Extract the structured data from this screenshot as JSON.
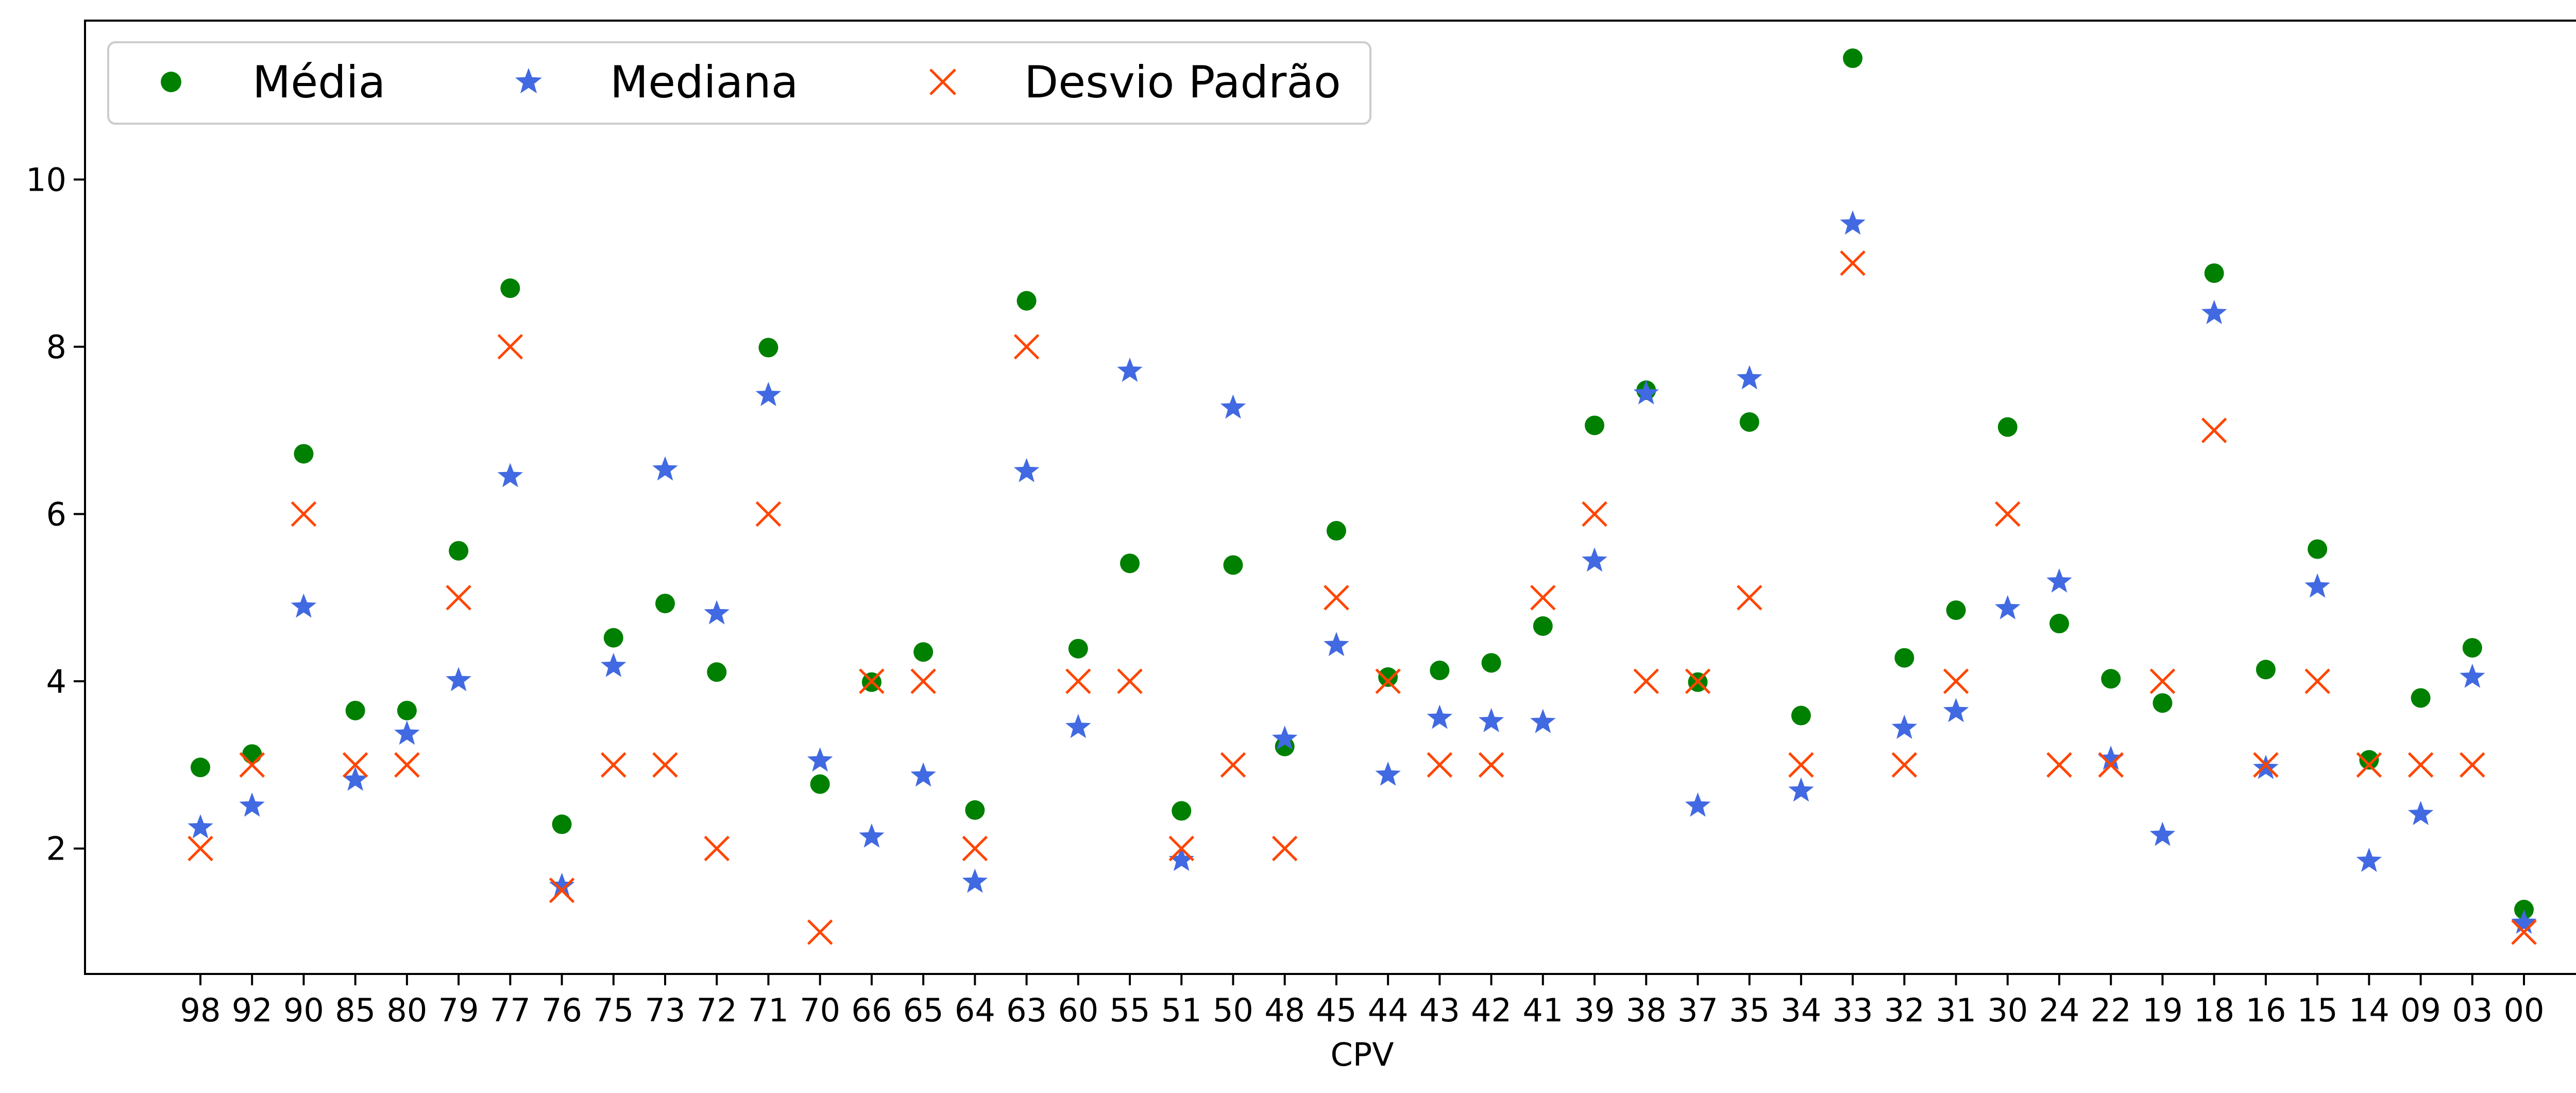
{
  "chart_data": {
    "type": "scatter",
    "title": "",
    "xlabel": "CPV",
    "ylabel": "",
    "ylim": [
      0.5,
      11.9
    ],
    "yticks": [
      2,
      4,
      6,
      8,
      10
    ],
    "grid": false,
    "legend_position": "upper-left",
    "categories": [
      "98",
      "92",
      "90",
      "85",
      "80",
      "79",
      "77",
      "76",
      "75",
      "73",
      "72",
      "71",
      "70",
      "66",
      "65",
      "64",
      "63",
      "60",
      "55",
      "51",
      "50",
      "48",
      "45",
      "44",
      "43",
      "42",
      "41",
      "39",
      "38",
      "37",
      "35",
      "34",
      "33",
      "32",
      "31",
      "30",
      "24",
      "22",
      "19",
      "18",
      "16",
      "15",
      "14",
      "09",
      "03",
      "00"
    ],
    "series": [
      {
        "name": "Média",
        "marker": "circle",
        "color": "#008000",
        "values": [
          2.97,
          3.13,
          6.72,
          3.65,
          3.65,
          5.56,
          8.7,
          2.29,
          4.52,
          4.93,
          4.11,
          7.99,
          2.77,
          3.99,
          4.35,
          2.46,
          8.55,
          4.39,
          5.41,
          2.45,
          5.39,
          3.22,
          5.8,
          4.05,
          4.13,
          4.22,
          4.66,
          7.06,
          7.48,
          3.99,
          7.1,
          3.59,
          11.45,
          4.28,
          4.85,
          7.04,
          4.69,
          4.03,
          3.74,
          8.88,
          4.14,
          5.58,
          3.06,
          3.8,
          4.4,
          1.27
        ]
      },
      {
        "name": "Mediana",
        "marker": "star",
        "color": "#4169e1",
        "values": [
          2.25,
          2.51,
          4.89,
          2.82,
          3.37,
          4.01,
          6.45,
          1.55,
          4.18,
          6.53,
          4.81,
          7.42,
          3.05,
          2.14,
          2.87,
          1.6,
          6.51,
          3.45,
          7.71,
          1.86,
          7.27,
          3.31,
          4.43,
          2.88,
          3.56,
          3.52,
          3.51,
          5.44,
          7.44,
          2.51,
          7.62,
          2.69,
          9.47,
          3.44,
          3.64,
          4.87,
          5.19,
          3.07,
          2.16,
          8.4,
          2.96,
          5.13,
          1.85,
          2.41,
          4.05,
          1.11
        ]
      },
      {
        "name": "Desvio Padrão",
        "marker": "x",
        "color": "#ff4500",
        "values": [
          2,
          3,
          6,
          3,
          3,
          5,
          8,
          1.5,
          3,
          3,
          2,
          6,
          1,
          4,
          4,
          2,
          8,
          4,
          4,
          2,
          3,
          2,
          5,
          4,
          3,
          3,
          5,
          6,
          4,
          4,
          5,
          3,
          9,
          3,
          4,
          6,
          3,
          3,
          4,
          7,
          3,
          4,
          3,
          3,
          3,
          1
        ]
      }
    ]
  }
}
